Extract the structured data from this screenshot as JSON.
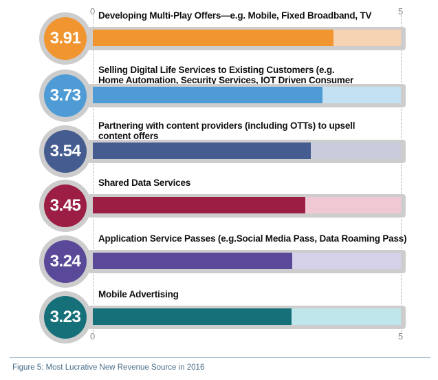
{
  "chart_data": {
    "type": "bar",
    "orientation": "horizontal",
    "xlim": [
      0,
      5
    ],
    "ticks": [
      {
        "value": 0,
        "label": "0"
      },
      {
        "value": 5,
        "label": "5"
      }
    ],
    "items": [
      {
        "label": "Developing Multi-Play Offers—e.g. Mobile, Fixed Broadband, TV",
        "value": 3.91,
        "value_label": "3.91",
        "color": "#f0952f",
        "track_color": "#f5d3b3"
      },
      {
        "label": "Selling Digital Life Services to Existing Customers (e.g. Home Automation, Security Services, IOT Driven Consumer Services)",
        "value": 3.73,
        "value_label": "3.73",
        "color": "#4f9bd6",
        "track_color": "#c3e1f3"
      },
      {
        "label": "Partnering with content providers (including OTTs) to upsell content offers",
        "value": 3.54,
        "value_label": "3.54",
        "color": "#445c8f",
        "track_color": "#c7cbdb"
      },
      {
        "label": "Shared Data Services",
        "value": 3.45,
        "value_label": "3.45",
        "color": "#9c1e44",
        "track_color": "#efc8d3"
      },
      {
        "label": "Application Service Passes (e.g.Social Media Pass, Data Roaming Pass)",
        "value": 3.24,
        "value_label": "3.24",
        "color": "#5a4899",
        "track_color": "#d5d1e9"
      },
      {
        "label": "Mobile Advertising",
        "value": 3.23,
        "value_label": "3.23",
        "color": "#16707a",
        "track_color": "#bfe6ea"
      }
    ]
  },
  "caption": "Figure 5: Most Lucrative New Revenue Source in 2016"
}
